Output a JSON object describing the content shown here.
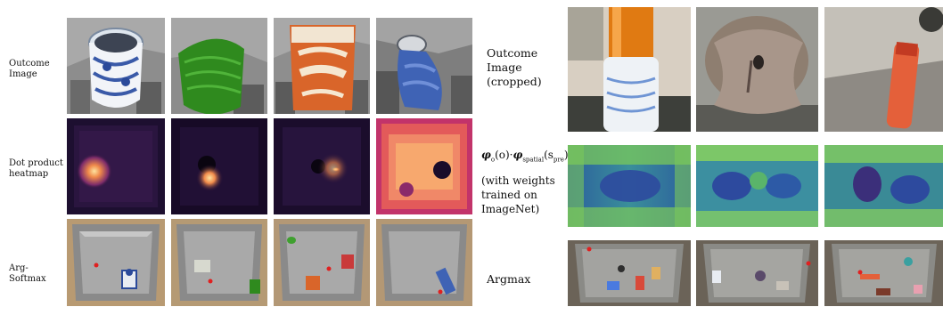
{
  "left_panel": {
    "row_labels": {
      "outcome": "Outcome Image",
      "heatmap": "Dot product heatmap",
      "argsoftmax": "Arg-Softmax"
    }
  },
  "right_panel": {
    "row_labels": {
      "outcome_cropped": "Outcome Image (cropped)",
      "phi_expression": {
        "phi1": "φ",
        "sub1": "o",
        "arg1": "(o)·",
        "phi2": "φ",
        "sub2": "spatial",
        "arg2": "(s",
        "sub3": "pre",
        "close": ")"
      },
      "weights_note": "(with weights trained on ImageNet)",
      "argmax": "Argmax"
    }
  },
  "colors": {
    "heatmap_dark": "#1a0c2a",
    "heatmap_hot": "#f7c96b",
    "feature_blue": "#2c5f9e",
    "feature_green": "#7ac85a",
    "argmax_dot": "#e02020"
  }
}
